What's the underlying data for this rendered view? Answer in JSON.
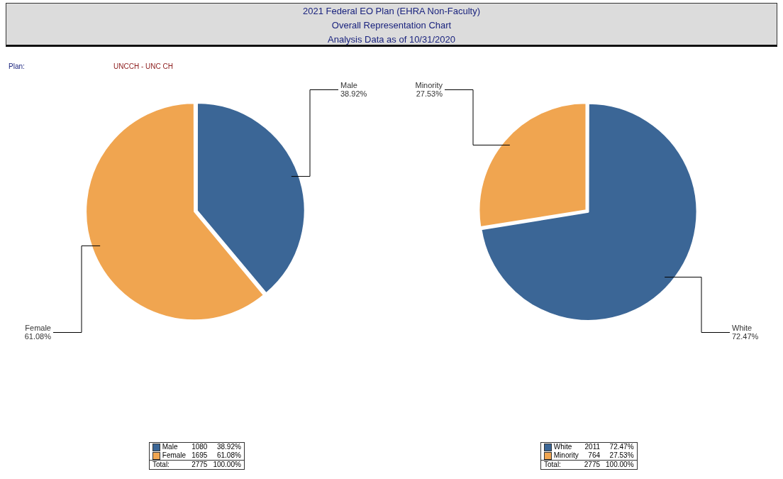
{
  "chart_data": [
    {
      "type": "pie",
      "title": "2021 Federal EO Plan (EHRA Non-Faculty)",
      "subtitle": "Overall Representation Chart",
      "annotations": [
        "Analysis Data as of 10/31/2020",
        "Plan:",
        "UNCCH - UNC CH",
        "1080",
        "1695",
        "Total:",
        "2775",
        "100.00%"
      ],
      "categories": [
        "Male",
        "Female"
      ],
      "values": [
        38.92,
        61.08
      ],
      "value_labels": [
        "38.92%",
        "61.08%"
      ],
      "colors": [
        "#3b6696",
        "#f0a550"
      ],
      "legend": "bottom"
    },
    {
      "type": "pie",
      "annotations": [
        "2011",
        "764",
        "Total:",
        "2775",
        "100.00%"
      ],
      "categories": [
        "White",
        "Minority"
      ],
      "values": [
        72.47,
        27.53
      ],
      "value_labels": [
        "72.47%",
        "27.53%"
      ],
      "colors": [
        "#3b6696",
        "#f0a550"
      ],
      "legend": "bottom"
    }
  ]
}
